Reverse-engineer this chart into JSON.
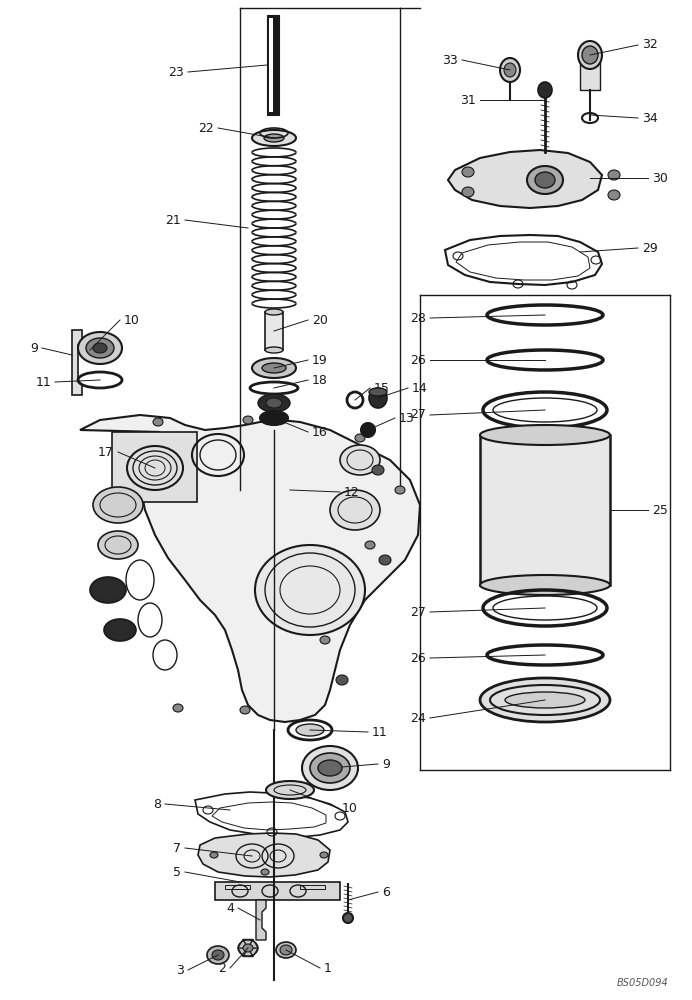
{
  "background_color": "#ffffff",
  "image_code": "BS05D094",
  "lc": "#1a1a1a",
  "fs": 9,
  "fig_w": 6.92,
  "fig_h": 10.0,
  "dpi": 100
}
